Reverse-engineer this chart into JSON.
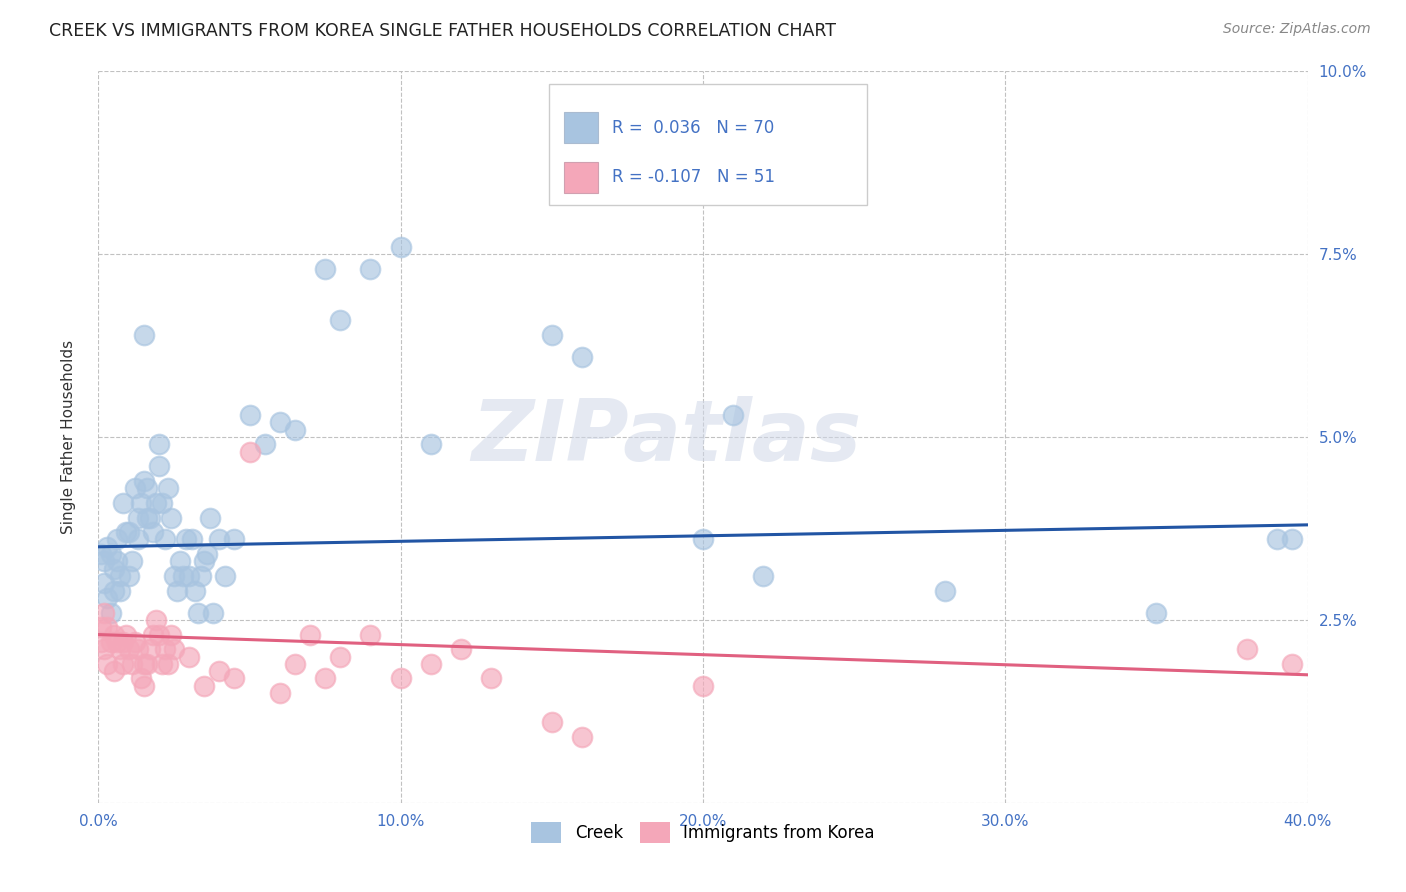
{
  "title": "CREEK VS IMMIGRANTS FROM KOREA SINGLE FATHER HOUSEHOLDS CORRELATION CHART",
  "source": "Source: ZipAtlas.com",
  "ylabel": "Single Father Households",
  "xlim": [
    0.0,
    0.4
  ],
  "ylim": [
    0.0,
    0.1
  ],
  "xticks": [
    0.0,
    0.1,
    0.2,
    0.3,
    0.4
  ],
  "yticks": [
    0.0,
    0.025,
    0.05,
    0.075,
    0.1
  ],
  "xtick_labels": [
    "0.0%",
    "10.0%",
    "20.0%",
    "30.0%",
    "40.0%"
  ],
  "ytick_labels_right": [
    "",
    "2.5%",
    "5.0%",
    "7.5%",
    "10.0%"
  ],
  "creek_color": "#a8c4e0",
  "korea_color": "#f4a7b9",
  "creek_line_color": "#2255a4",
  "korea_line_color": "#e06080",
  "creek_R": 0.036,
  "creek_N": 70,
  "korea_R": -0.107,
  "korea_N": 51,
  "watermark": "ZIPatlas",
  "background_color": "#ffffff",
  "grid_color": "#bbbbbb",
  "creek_scatter_x": [
    0.001,
    0.002,
    0.002,
    0.003,
    0.003,
    0.004,
    0.004,
    0.005,
    0.005,
    0.006,
    0.006,
    0.007,
    0.007,
    0.008,
    0.009,
    0.01,
    0.01,
    0.011,
    0.012,
    0.013,
    0.013,
    0.014,
    0.015,
    0.016,
    0.016,
    0.017,
    0.018,
    0.019,
    0.02,
    0.021,
    0.022,
    0.023,
    0.024,
    0.025,
    0.026,
    0.027,
    0.028,
    0.029,
    0.03,
    0.031,
    0.032,
    0.033,
    0.034,
    0.035,
    0.036,
    0.037,
    0.038,
    0.04,
    0.042,
    0.045,
    0.05,
    0.055,
    0.06,
    0.065,
    0.075,
    0.08,
    0.09,
    0.1,
    0.11,
    0.15,
    0.16,
    0.2,
    0.21,
    0.22,
    0.28,
    0.35,
    0.39,
    0.395,
    0.015,
    0.02
  ],
  "creek_scatter_y": [
    0.034,
    0.033,
    0.03,
    0.035,
    0.028,
    0.034,
    0.026,
    0.032,
    0.029,
    0.036,
    0.033,
    0.031,
    0.029,
    0.041,
    0.037,
    0.037,
    0.031,
    0.033,
    0.043,
    0.039,
    0.036,
    0.041,
    0.044,
    0.039,
    0.043,
    0.039,
    0.037,
    0.041,
    0.046,
    0.041,
    0.036,
    0.043,
    0.039,
    0.031,
    0.029,
    0.033,
    0.031,
    0.036,
    0.031,
    0.036,
    0.029,
    0.026,
    0.031,
    0.033,
    0.034,
    0.039,
    0.026,
    0.036,
    0.031,
    0.036,
    0.053,
    0.049,
    0.052,
    0.051,
    0.073,
    0.066,
    0.073,
    0.076,
    0.049,
    0.064,
    0.061,
    0.036,
    0.053,
    0.031,
    0.029,
    0.026,
    0.036,
    0.036,
    0.064,
    0.049
  ],
  "korea_scatter_x": [
    0.001,
    0.001,
    0.002,
    0.002,
    0.003,
    0.003,
    0.004,
    0.005,
    0.005,
    0.006,
    0.007,
    0.008,
    0.008,
    0.009,
    0.01,
    0.011,
    0.012,
    0.013,
    0.014,
    0.015,
    0.015,
    0.016,
    0.017,
    0.018,
    0.019,
    0.02,
    0.021,
    0.022,
    0.023,
    0.024,
    0.025,
    0.03,
    0.035,
    0.04,
    0.045,
    0.05,
    0.06,
    0.065,
    0.07,
    0.075,
    0.08,
    0.09,
    0.1,
    0.11,
    0.12,
    0.13,
    0.15,
    0.16,
    0.2,
    0.38,
    0.395
  ],
  "korea_scatter_y": [
    0.024,
    0.022,
    0.026,
    0.021,
    0.024,
    0.019,
    0.022,
    0.023,
    0.018,
    0.022,
    0.021,
    0.022,
    0.019,
    0.023,
    0.021,
    0.019,
    0.022,
    0.021,
    0.017,
    0.016,
    0.019,
    0.019,
    0.021,
    0.023,
    0.025,
    0.023,
    0.019,
    0.021,
    0.019,
    0.023,
    0.021,
    0.02,
    0.016,
    0.018,
    0.017,
    0.048,
    0.015,
    0.019,
    0.023,
    0.017,
    0.02,
    0.023,
    0.017,
    0.019,
    0.021,
    0.017,
    0.011,
    0.009,
    0.016,
    0.021,
    0.019
  ]
}
